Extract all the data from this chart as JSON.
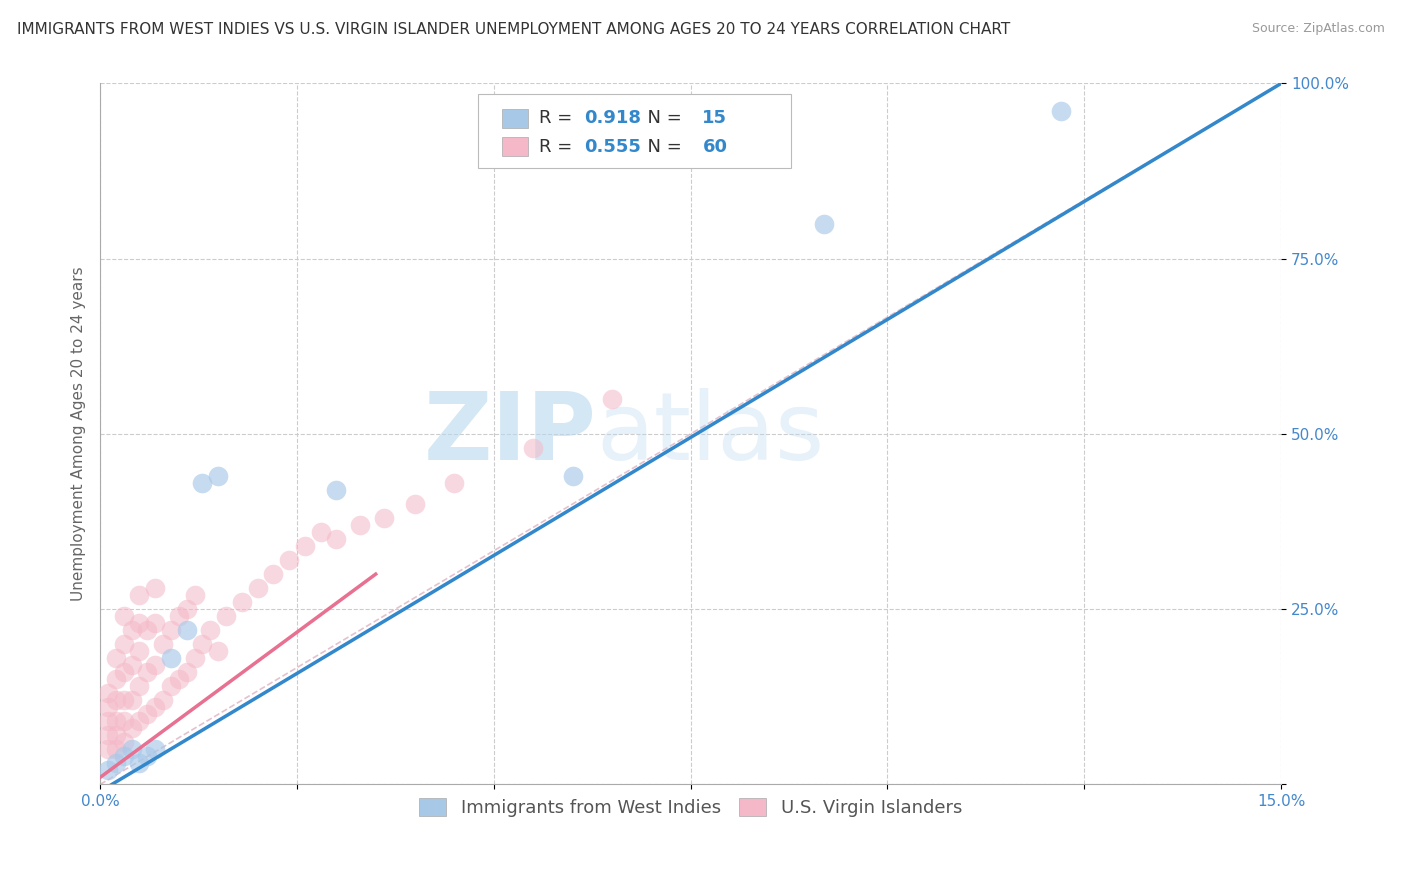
{
  "title": "IMMIGRANTS FROM WEST INDIES VS U.S. VIRGIN ISLANDER UNEMPLOYMENT AMONG AGES 20 TO 24 YEARS CORRELATION CHART",
  "source": "Source: ZipAtlas.com",
  "ylabel": "Unemployment Among Ages 20 to 24 years",
  "xlim": [
    0.0,
    0.15
  ],
  "ylim": [
    0.0,
    1.0
  ],
  "xticks": [
    0.0,
    0.025,
    0.05,
    0.075,
    0.1,
    0.125,
    0.15
  ],
  "xticklabels": [
    "0.0%",
    "",
    "",
    "",
    "",
    "",
    "15.0%"
  ],
  "ytick_positions": [
    0.0,
    0.25,
    0.5,
    0.75,
    1.0
  ],
  "yticklabels": [
    "",
    "25.0%",
    "50.0%",
    "75.0%",
    "100.0%"
  ],
  "blue_scatter_x": [
    0.001,
    0.002,
    0.003,
    0.004,
    0.005,
    0.006,
    0.007,
    0.009,
    0.011,
    0.013,
    0.015,
    0.03,
    0.06,
    0.092,
    0.122
  ],
  "blue_scatter_y": [
    0.02,
    0.03,
    0.04,
    0.05,
    0.03,
    0.04,
    0.05,
    0.18,
    0.22,
    0.43,
    0.44,
    0.42,
    0.44,
    0.8,
    0.96
  ],
  "pink_scatter_x": [
    0.001,
    0.001,
    0.001,
    0.001,
    0.001,
    0.002,
    0.002,
    0.002,
    0.002,
    0.002,
    0.002,
    0.003,
    0.003,
    0.003,
    0.003,
    0.003,
    0.003,
    0.004,
    0.004,
    0.004,
    0.004,
    0.005,
    0.005,
    0.005,
    0.005,
    0.005,
    0.006,
    0.006,
    0.006,
    0.007,
    0.007,
    0.007,
    0.007,
    0.008,
    0.008,
    0.009,
    0.009,
    0.01,
    0.01,
    0.011,
    0.011,
    0.012,
    0.012,
    0.013,
    0.014,
    0.015,
    0.016,
    0.018,
    0.02,
    0.022,
    0.024,
    0.026,
    0.028,
    0.03,
    0.033,
    0.036,
    0.04,
    0.045,
    0.055,
    0.065
  ],
  "pink_scatter_y": [
    0.05,
    0.07,
    0.09,
    0.11,
    0.13,
    0.05,
    0.07,
    0.09,
    0.12,
    0.15,
    0.18,
    0.06,
    0.09,
    0.12,
    0.16,
    0.2,
    0.24,
    0.08,
    0.12,
    0.17,
    0.22,
    0.09,
    0.14,
    0.19,
    0.23,
    0.27,
    0.1,
    0.16,
    0.22,
    0.11,
    0.17,
    0.23,
    0.28,
    0.12,
    0.2,
    0.14,
    0.22,
    0.15,
    0.24,
    0.16,
    0.25,
    0.18,
    0.27,
    0.2,
    0.22,
    0.19,
    0.24,
    0.26,
    0.28,
    0.3,
    0.32,
    0.34,
    0.36,
    0.35,
    0.37,
    0.38,
    0.4,
    0.43,
    0.48,
    0.55
  ],
  "blue_line_x": [
    0.0,
    0.15
  ],
  "blue_line_y": [
    -0.01,
    1.0
  ],
  "pink_line_x": [
    0.0,
    0.035
  ],
  "pink_line_y": [
    0.01,
    0.3
  ],
  "ref_line_x": [
    0.0,
    0.15
  ],
  "ref_line_y": [
    0.0,
    1.0
  ],
  "blue_R": "0.918",
  "blue_N": "15",
  "pink_R": "0.555",
  "pink_N": "60",
  "blue_scatter_color": "#a8c8e8",
  "pink_scatter_color": "#f4b8c8",
  "blue_line_color": "#3388cc",
  "pink_line_color": "#e87090",
  "ref_line_color": "#d8a8b8",
  "watermark_zip": "ZIP",
  "watermark_atlas": "atlas",
  "watermark_color": "#b8d8ee",
  "background_color": "#ffffff",
  "grid_color": "#cccccc",
  "title_fontsize": 11,
  "legend_fontsize": 13,
  "axis_label_fontsize": 11,
  "tick_fontsize": 11,
  "tick_color": "#4488cc",
  "legend_text_dark": "#333333",
  "legend_value_color": "#3388cc"
}
